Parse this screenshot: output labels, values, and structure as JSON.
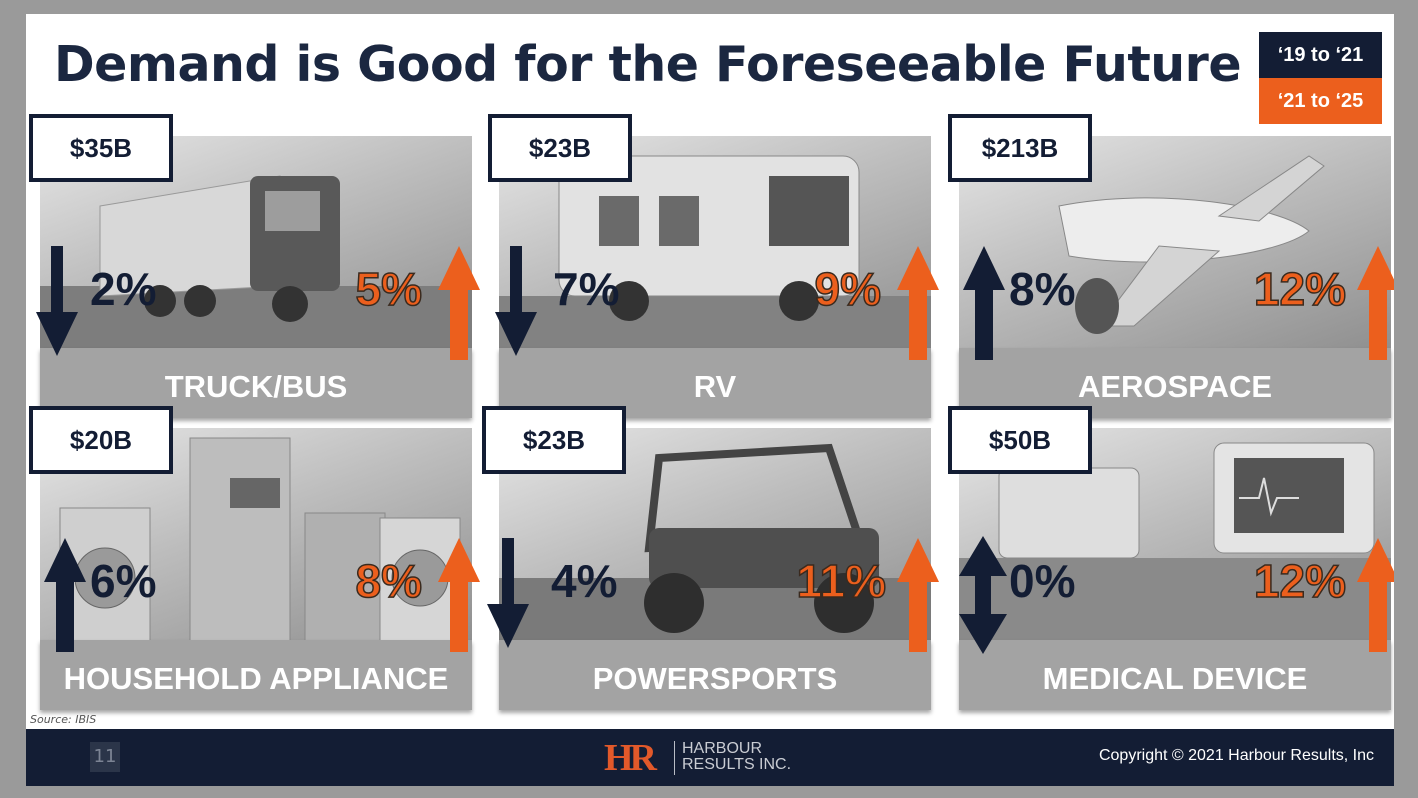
{
  "slide": {
    "title": "Demand is Good for the Foreseeable Future",
    "legend": {
      "period1": "‘19 to ‘21",
      "period2": "‘21 to ‘25"
    },
    "source": "Source: IBIS",
    "page_number": "11",
    "logo": {
      "mark": "HR",
      "line1": "HARBOUR",
      "line2": "RESULTS INC."
    },
    "copyright": "Copyright © 2021 Harbour Results, Inc"
  },
  "colors": {
    "navy": "#131d34",
    "orange": "#ec5f1d",
    "panel_gray": "#a3a3a3"
  },
  "markets": [
    {
      "name": "TRUCK/BUS",
      "size": "$35B",
      "pct1": "2%",
      "dir1": "down",
      "pct2": "5%",
      "dir2": "up",
      "image": "truck-icon"
    },
    {
      "name": "RV",
      "size": "$23B",
      "pct1": "7%",
      "dir1": "down",
      "pct2": "9%",
      "dir2": "up",
      "image": "rv-icon"
    },
    {
      "name": "AEROSPACE",
      "size": "$213B",
      "pct1": "8%",
      "dir1": "up",
      "pct2": "12%",
      "dir2": "up",
      "image": "airplane-icon"
    },
    {
      "name": "HOUSEHOLD APPLIANCE",
      "size": "$20B",
      "pct1": "6%",
      "dir1": "up",
      "pct2": "8%",
      "dir2": "up",
      "image": "appliance-icon"
    },
    {
      "name": "POWERSPORTS",
      "size": "$23B",
      "pct1": "4%",
      "dir1": "down",
      "pct2": "11%",
      "dir2": "up",
      "image": "utv-icon"
    },
    {
      "name": "MEDICAL DEVICE",
      "size": "$50B",
      "pct1": "0%",
      "dir1": "both",
      "pct2": "12%",
      "dir2": "up",
      "image": "medical-monitor-icon"
    }
  ]
}
